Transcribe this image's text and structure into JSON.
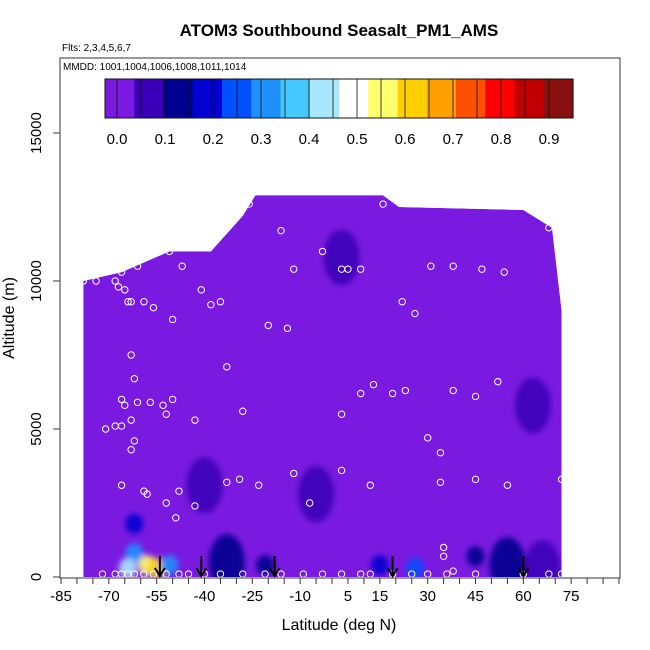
{
  "chart_data": {
    "type": "heatmap",
    "title": "ATOM3 Southbound Seasalt_PM1_AMS",
    "subtitle_flights": "Flts: 2,3,4,5,6,7",
    "subtitle_dates": "MMDD: 1001,1004,1006,1008,1011,1014",
    "xlabel": "Latitude (deg N)",
    "ylabel": "Altitude (m)",
    "xlim": [
      -85,
      90
    ],
    "ylim": [
      0,
      17500
    ],
    "x_ticks": [
      -85,
      -70,
      -55,
      -40,
      -25,
      -10,
      5,
      15,
      30,
      45,
      60,
      75
    ],
    "y_ticks": [
      0,
      5000,
      10000,
      15000
    ],
    "colorbar": {
      "min": -0.025,
      "max": 0.95,
      "ticks": [
        0.0,
        0.1,
        0.2,
        0.3,
        0.4,
        0.5,
        0.6,
        0.7,
        0.8,
        0.9
      ],
      "tick_labels": [
        "0.0",
        "0.1",
        "0.2",
        "0.3",
        "0.4",
        "0.5",
        "0.6",
        "0.7",
        "0.8",
        "0.9"
      ],
      "colors": [
        "#7a1ae0",
        "#3a00b8",
        "#00008e",
        "#0000d0",
        "#0050ff",
        "#1e90ff",
        "#44c8ff",
        "#a8e8ff",
        "#ffffff",
        "#ffff70",
        "#ffd000",
        "#ffa000",
        "#ff5000",
        "#ff0000",
        "#c00000",
        "#8a1010"
      ]
    },
    "field_outline": [
      [
        -78,
        0
      ],
      [
        -78,
        10000
      ],
      [
        -66,
        10300
      ],
      [
        -51,
        11000
      ],
      [
        -38,
        11000
      ],
      [
        -28,
        12200
      ],
      [
        -24,
        12900
      ],
      [
        -3,
        12900
      ],
      [
        3,
        12900
      ],
      [
        16,
        12900
      ],
      [
        21,
        12500
      ],
      [
        60,
        12400
      ],
      [
        69,
        11800
      ],
      [
        72,
        9000
      ],
      [
        72,
        0
      ]
    ],
    "base_value": 0.02,
    "features": [
      {
        "lat": 3,
        "alt": 10800,
        "value": 0.09
      },
      {
        "lat": 63,
        "alt": 5800,
        "value": 0.06
      },
      {
        "lat": -40,
        "alt": 3100,
        "value": 0.08
      },
      {
        "lat": -5,
        "alt": 2800,
        "value": 0.07
      },
      {
        "lat": -62,
        "alt": 1800,
        "value": 0.16
      },
      {
        "lat": -62,
        "alt": 800,
        "value": 0.3
      },
      {
        "lat": -64,
        "alt": 300,
        "value": 0.45
      },
      {
        "lat": -58,
        "alt": 400,
        "value": 0.55
      },
      {
        "lat": -55,
        "alt": 300,
        "value": 0.62
      },
      {
        "lat": -51,
        "alt": 400,
        "value": 0.28
      },
      {
        "lat": -33,
        "alt": 500,
        "value": 0.1
      },
      {
        "lat": -21,
        "alt": 400,
        "value": 0.12
      },
      {
        "lat": 15,
        "alt": 400,
        "value": 0.2
      },
      {
        "lat": 26,
        "alt": 300,
        "value": 0.23
      },
      {
        "lat": 45,
        "alt": 700,
        "value": 0.12
      },
      {
        "lat": 55,
        "alt": 400,
        "value": 0.1
      },
      {
        "lat": 66,
        "alt": 300,
        "value": 0.09
      }
    ],
    "points": [
      [
        -78,
        10000
      ],
      [
        -74,
        10000
      ],
      [
        -68,
        10000
      ],
      [
        -67,
        9800
      ],
      [
        -66,
        10300
      ],
      [
        -65,
        9700
      ],
      [
        -64,
        9300
      ],
      [
        -63,
        9300
      ],
      [
        -61,
        10500
      ],
      [
        -59,
        9300
      ],
      [
        -57,
        11000
      ],
      [
        -56,
        9100
      ],
      [
        -51,
        11000
      ],
      [
        -47,
        10500
      ],
      [
        -50,
        8700
      ],
      [
        -41,
        9700
      ],
      [
        -38,
        9200
      ],
      [
        -35,
        9300
      ],
      [
        -33,
        7100
      ],
      [
        -26,
        12600
      ],
      [
        -20,
        8500
      ],
      [
        -16,
        11700
      ],
      [
        -14,
        8400
      ],
      [
        -12,
        10400
      ],
      [
        -3,
        11000
      ],
      [
        3,
        10400
      ],
      [
        5,
        10400
      ],
      [
        9,
        10400
      ],
      [
        16,
        12600
      ],
      [
        22,
        9300
      ],
      [
        26,
        8900
      ],
      [
        31,
        10500
      ],
      [
        38,
        10500
      ],
      [
        47,
        10400
      ],
      [
        54,
        10300
      ],
      [
        68,
        11800
      ],
      [
        -63,
        7500
      ],
      [
        -62,
        6700
      ],
      [
        -66,
        6000
      ],
      [
        -65,
        5800
      ],
      [
        -61,
        5900
      ],
      [
        -63,
        5300
      ],
      [
        -68,
        5100
      ],
      [
        -66,
        5100
      ],
      [
        -71,
        5000
      ],
      [
        -62,
        4600
      ],
      [
        -63,
        4300
      ],
      [
        -57,
        5900
      ],
      [
        -53,
        5800
      ],
      [
        -50,
        6000
      ],
      [
        -52,
        5500
      ],
      [
        -43,
        5300
      ],
      [
        -28,
        5600
      ],
      [
        3,
        5500
      ],
      [
        9,
        6200
      ],
      [
        13,
        6500
      ],
      [
        19,
        6200
      ],
      [
        23,
        6300
      ],
      [
        30,
        4700
      ],
      [
        34,
        4200
      ],
      [
        38,
        6300
      ],
      [
        45,
        6100
      ],
      [
        52,
        6600
      ],
      [
        -66,
        3100
      ],
      [
        -59,
        2900
      ],
      [
        -58,
        2800
      ],
      [
        -52,
        2500
      ],
      [
        -49,
        2000
      ],
      [
        -48,
        2900
      ],
      [
        -43,
        2400
      ],
      [
        -33,
        3200
      ],
      [
        -29,
        3300
      ],
      [
        -23,
        3100
      ],
      [
        -12,
        3500
      ],
      [
        -7,
        2500
      ],
      [
        3,
        3600
      ],
      [
        12,
        3100
      ],
      [
        34,
        3200
      ],
      [
        45,
        3300
      ],
      [
        55,
        3100
      ],
      [
        72,
        3300
      ],
      [
        35,
        1000
      ],
      [
        35,
        700
      ],
      [
        38,
        200
      ],
      [
        -72,
        100
      ],
      [
        -68,
        100
      ],
      [
        -66,
        100
      ],
      [
        -64,
        100
      ],
      [
        -62,
        100
      ],
      [
        -59,
        100
      ],
      [
        -56,
        100
      ],
      [
        -52,
        100
      ],
      [
        -48,
        100
      ],
      [
        -45,
        100
      ],
      [
        -40,
        100
      ],
      [
        -35,
        100
      ],
      [
        -28,
        100
      ],
      [
        -21,
        100
      ],
      [
        -16,
        100
      ],
      [
        -9,
        100
      ],
      [
        -3,
        100
      ],
      [
        3,
        100
      ],
      [
        9,
        100
      ],
      [
        12,
        100
      ],
      [
        19,
        100
      ],
      [
        25,
        100
      ],
      [
        30,
        100
      ],
      [
        36,
        100
      ],
      [
        45,
        100
      ],
      [
        60,
        100
      ],
      [
        68,
        100
      ],
      [
        72,
        100
      ]
    ],
    "arrows": [
      -54,
      -41,
      -18,
      19,
      60
    ],
    "grid": false,
    "legend": "colorbar top"
  }
}
